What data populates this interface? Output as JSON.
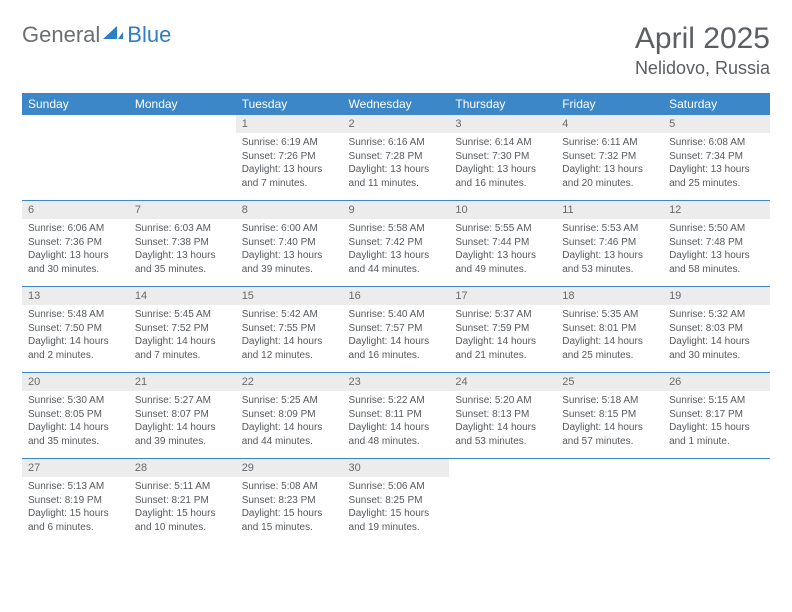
{
  "brand": {
    "part1": "General",
    "part2": "Blue"
  },
  "title": "April 2025",
  "location": "Nelidovo, Russia",
  "colors": {
    "header_bar": "#3b87c8",
    "daynum_bg": "#ececec",
    "text_muted": "#5a5f64",
    "logo_gray": "#6b7075",
    "logo_blue": "#2f7dc4"
  },
  "days_of_week": [
    "Sunday",
    "Monday",
    "Tuesday",
    "Wednesday",
    "Thursday",
    "Friday",
    "Saturday"
  ],
  "weeks": [
    [
      null,
      null,
      {
        "n": "1",
        "sr": "Sunrise: 6:19 AM",
        "ss": "Sunset: 7:26 PM",
        "dl": "Daylight: 13 hours and 7 minutes."
      },
      {
        "n": "2",
        "sr": "Sunrise: 6:16 AM",
        "ss": "Sunset: 7:28 PM",
        "dl": "Daylight: 13 hours and 11 minutes."
      },
      {
        "n": "3",
        "sr": "Sunrise: 6:14 AM",
        "ss": "Sunset: 7:30 PM",
        "dl": "Daylight: 13 hours and 16 minutes."
      },
      {
        "n": "4",
        "sr": "Sunrise: 6:11 AM",
        "ss": "Sunset: 7:32 PM",
        "dl": "Daylight: 13 hours and 20 minutes."
      },
      {
        "n": "5",
        "sr": "Sunrise: 6:08 AM",
        "ss": "Sunset: 7:34 PM",
        "dl": "Daylight: 13 hours and 25 minutes."
      }
    ],
    [
      {
        "n": "6",
        "sr": "Sunrise: 6:06 AM",
        "ss": "Sunset: 7:36 PM",
        "dl": "Daylight: 13 hours and 30 minutes."
      },
      {
        "n": "7",
        "sr": "Sunrise: 6:03 AM",
        "ss": "Sunset: 7:38 PM",
        "dl": "Daylight: 13 hours and 35 minutes."
      },
      {
        "n": "8",
        "sr": "Sunrise: 6:00 AM",
        "ss": "Sunset: 7:40 PM",
        "dl": "Daylight: 13 hours and 39 minutes."
      },
      {
        "n": "9",
        "sr": "Sunrise: 5:58 AM",
        "ss": "Sunset: 7:42 PM",
        "dl": "Daylight: 13 hours and 44 minutes."
      },
      {
        "n": "10",
        "sr": "Sunrise: 5:55 AM",
        "ss": "Sunset: 7:44 PM",
        "dl": "Daylight: 13 hours and 49 minutes."
      },
      {
        "n": "11",
        "sr": "Sunrise: 5:53 AM",
        "ss": "Sunset: 7:46 PM",
        "dl": "Daylight: 13 hours and 53 minutes."
      },
      {
        "n": "12",
        "sr": "Sunrise: 5:50 AM",
        "ss": "Sunset: 7:48 PM",
        "dl": "Daylight: 13 hours and 58 minutes."
      }
    ],
    [
      {
        "n": "13",
        "sr": "Sunrise: 5:48 AM",
        "ss": "Sunset: 7:50 PM",
        "dl": "Daylight: 14 hours and 2 minutes."
      },
      {
        "n": "14",
        "sr": "Sunrise: 5:45 AM",
        "ss": "Sunset: 7:52 PM",
        "dl": "Daylight: 14 hours and 7 minutes."
      },
      {
        "n": "15",
        "sr": "Sunrise: 5:42 AM",
        "ss": "Sunset: 7:55 PM",
        "dl": "Daylight: 14 hours and 12 minutes."
      },
      {
        "n": "16",
        "sr": "Sunrise: 5:40 AM",
        "ss": "Sunset: 7:57 PM",
        "dl": "Daylight: 14 hours and 16 minutes."
      },
      {
        "n": "17",
        "sr": "Sunrise: 5:37 AM",
        "ss": "Sunset: 7:59 PM",
        "dl": "Daylight: 14 hours and 21 minutes."
      },
      {
        "n": "18",
        "sr": "Sunrise: 5:35 AM",
        "ss": "Sunset: 8:01 PM",
        "dl": "Daylight: 14 hours and 25 minutes."
      },
      {
        "n": "19",
        "sr": "Sunrise: 5:32 AM",
        "ss": "Sunset: 8:03 PM",
        "dl": "Daylight: 14 hours and 30 minutes."
      }
    ],
    [
      {
        "n": "20",
        "sr": "Sunrise: 5:30 AM",
        "ss": "Sunset: 8:05 PM",
        "dl": "Daylight: 14 hours and 35 minutes."
      },
      {
        "n": "21",
        "sr": "Sunrise: 5:27 AM",
        "ss": "Sunset: 8:07 PM",
        "dl": "Daylight: 14 hours and 39 minutes."
      },
      {
        "n": "22",
        "sr": "Sunrise: 5:25 AM",
        "ss": "Sunset: 8:09 PM",
        "dl": "Daylight: 14 hours and 44 minutes."
      },
      {
        "n": "23",
        "sr": "Sunrise: 5:22 AM",
        "ss": "Sunset: 8:11 PM",
        "dl": "Daylight: 14 hours and 48 minutes."
      },
      {
        "n": "24",
        "sr": "Sunrise: 5:20 AM",
        "ss": "Sunset: 8:13 PM",
        "dl": "Daylight: 14 hours and 53 minutes."
      },
      {
        "n": "25",
        "sr": "Sunrise: 5:18 AM",
        "ss": "Sunset: 8:15 PM",
        "dl": "Daylight: 14 hours and 57 minutes."
      },
      {
        "n": "26",
        "sr": "Sunrise: 5:15 AM",
        "ss": "Sunset: 8:17 PM",
        "dl": "Daylight: 15 hours and 1 minute."
      }
    ],
    [
      {
        "n": "27",
        "sr": "Sunrise: 5:13 AM",
        "ss": "Sunset: 8:19 PM",
        "dl": "Daylight: 15 hours and 6 minutes."
      },
      {
        "n": "28",
        "sr": "Sunrise: 5:11 AM",
        "ss": "Sunset: 8:21 PM",
        "dl": "Daylight: 15 hours and 10 minutes."
      },
      {
        "n": "29",
        "sr": "Sunrise: 5:08 AM",
        "ss": "Sunset: 8:23 PM",
        "dl": "Daylight: 15 hours and 15 minutes."
      },
      {
        "n": "30",
        "sr": "Sunrise: 5:06 AM",
        "ss": "Sunset: 8:25 PM",
        "dl": "Daylight: 15 hours and 19 minutes."
      },
      null,
      null,
      null
    ]
  ]
}
